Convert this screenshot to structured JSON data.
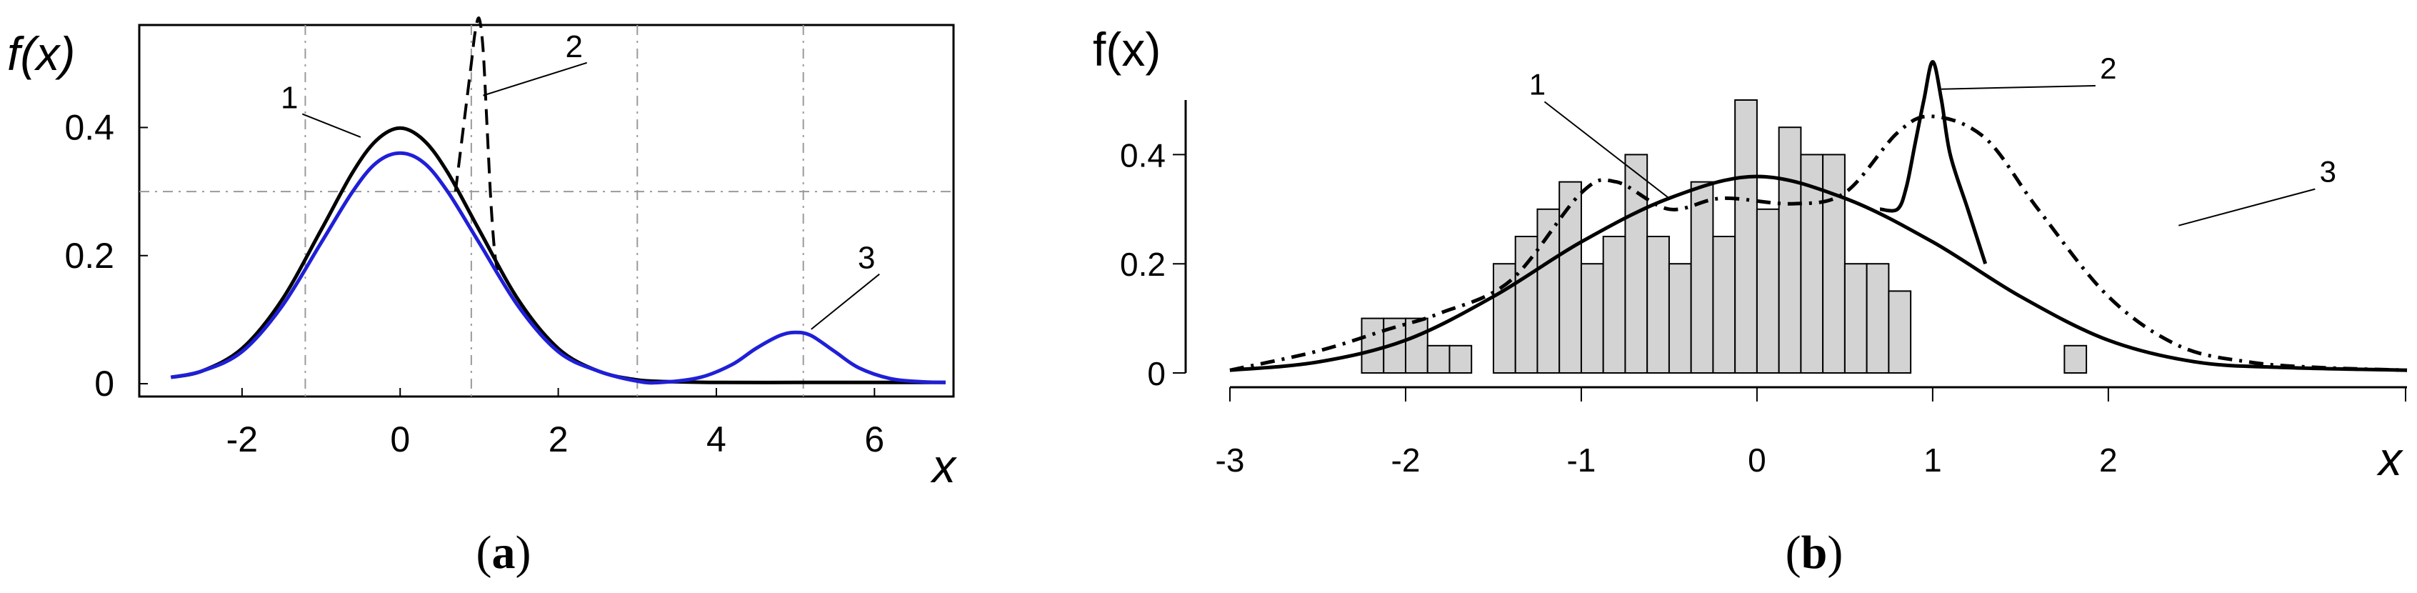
{
  "chart_data": [
    {
      "panel_label": "(a)",
      "panel_letter": "a",
      "type": "line",
      "ylabel": "f(x)",
      "xlabel": "x",
      "xlim": [
        -3.3,
        7.0
      ],
      "ylim": [
        -0.02,
        0.56
      ],
      "x_ticks": [
        -2,
        0,
        2,
        4,
        6
      ],
      "x_tick_labels": [
        "-2",
        "0",
        "2",
        "4",
        "6"
      ],
      "y_ticks": [
        0,
        0.2,
        0.4
      ],
      "y_tick_labels": [
        "0",
        "0.2",
        "0.4"
      ],
      "grid": {
        "vertical": [
          -1.2,
          0.9,
          3.0,
          5.1
        ],
        "horizontal": [
          0.3
        ]
      },
      "series": [
        {
          "name": "1",
          "color": "#000000",
          "style": "solid",
          "x": [
            -2.9,
            -2.5,
            -2.0,
            -1.5,
            -1.0,
            -0.6,
            -0.3,
            0.0,
            0.3,
            0.6,
            1.0,
            1.5,
            2.0,
            2.5,
            3.0,
            3.5,
            4.0,
            5.0,
            6.0,
            6.9
          ],
          "y": [
            0.01,
            0.02,
            0.055,
            0.13,
            0.24,
            0.33,
            0.38,
            0.399,
            0.38,
            0.33,
            0.24,
            0.13,
            0.055,
            0.02,
            0.006,
            0.003,
            0.002,
            0.002,
            0.002,
            0.002
          ]
        },
        {
          "name": "2",
          "color": "#000000",
          "style": "dashed",
          "x": [
            0.7,
            0.8,
            0.9,
            0.95,
            1.0,
            1.05,
            1.1,
            1.15,
            1.2,
            1.25
          ],
          "y": [
            0.3,
            0.4,
            0.5,
            0.55,
            0.57,
            0.52,
            0.4,
            0.28,
            0.2,
            0.17
          ]
        },
        {
          "name": "3",
          "color": "#1f1fd8",
          "style": "solid",
          "x": [
            -2.9,
            -2.5,
            -2.0,
            -1.5,
            -1.0,
            -0.6,
            -0.3,
            0.0,
            0.3,
            0.6,
            1.0,
            1.5,
            2.0,
            2.5,
            3.0,
            3.3,
            3.8,
            4.2,
            4.5,
            4.8,
            5.0,
            5.2,
            5.5,
            5.8,
            6.2,
            6.6,
            6.9
          ],
          "y": [
            0.01,
            0.02,
            0.05,
            0.12,
            0.22,
            0.3,
            0.345,
            0.36,
            0.345,
            0.3,
            0.22,
            0.12,
            0.05,
            0.02,
            0.004,
            0.002,
            0.01,
            0.03,
            0.055,
            0.075,
            0.08,
            0.075,
            0.05,
            0.025,
            0.008,
            0.003,
            0.002
          ]
        }
      ],
      "annotations": [
        {
          "text": "1",
          "x": -1.4,
          "y": 0.43,
          "target_x": -0.5,
          "target_y": 0.385
        },
        {
          "text": "2",
          "x": 2.2,
          "y": 0.51,
          "target_x": 1.05,
          "target_y": 0.45
        },
        {
          "text": "3",
          "x": 5.9,
          "y": 0.18,
          "target_x": 5.2,
          "target_y": 0.085
        }
      ]
    },
    {
      "panel_label": "(b)",
      "panel_letter": "b",
      "type": "bar",
      "ylabel": "f(x)",
      "xlabel": "x",
      "xlim": [
        -3.0,
        3.7
      ],
      "ylim": [
        0,
        0.5
      ],
      "x_ticks": [
        -3,
        -2,
        -1,
        0,
        1,
        2
      ],
      "x_tick_labels": [
        "-3",
        "-2",
        "-1",
        "0",
        "1",
        "2"
      ],
      "y_ticks": [
        0,
        0.2,
        0.4
      ],
      "y_tick_labels": [
        "0",
        "0.2",
        "0.4"
      ],
      "histogram": {
        "bin_width": 0.125,
        "bin_starts": [
          -2.25,
          -2.125,
          -2.0,
          -1.875,
          -1.75,
          -1.625,
          -1.5,
          -1.375,
          -1.25,
          -1.125,
          -1.0,
          -0.875,
          -0.75,
          -0.625,
          -0.5,
          -0.375,
          -0.25,
          -0.125,
          0.0,
          0.125,
          0.25,
          0.375,
          0.5,
          0.625,
          0.75,
          0.875,
          1.0,
          1.125,
          1.25,
          1.375,
          1.5,
          1.625,
          1.75,
          1.875
        ],
        "values": [
          0.1,
          0.1,
          0.1,
          0.05,
          0.05,
          0,
          0.2,
          0.25,
          0.3,
          0.35,
          0.2,
          0.25,
          0.4,
          0.25,
          0.2,
          0.35,
          0.25,
          0.5,
          0.3,
          0.45,
          0.4,
          0.4,
          0.2,
          0.2,
          0.15,
          0,
          0,
          0,
          0,
          0,
          0,
          0,
          0.05,
          0
        ],
        "color": "#d3d3d3"
      },
      "series": [
        {
          "name": "1",
          "color": "#000000",
          "style": "solid",
          "x": [
            -3.0,
            -2.5,
            -2.0,
            -1.5,
            -1.0,
            -0.5,
            0.0,
            0.5,
            1.0,
            1.5,
            2.0,
            2.5,
            3.0,
            3.7
          ],
          "y": [
            0.005,
            0.02,
            0.06,
            0.14,
            0.24,
            0.32,
            0.36,
            0.32,
            0.24,
            0.14,
            0.06,
            0.02,
            0.01,
            0.005
          ]
        },
        {
          "name": "2",
          "color": "#000000",
          "style": "solid",
          "x": [
            0.7,
            0.8,
            0.85,
            0.9,
            0.95,
            1.0,
            1.05,
            1.1,
            1.2,
            1.3
          ],
          "y": [
            0.3,
            0.3,
            0.34,
            0.42,
            0.5,
            0.57,
            0.5,
            0.4,
            0.3,
            0.2
          ]
        },
        {
          "name": "3",
          "color": "#000000",
          "style": "dashdot",
          "x": [
            -3.0,
            -2.5,
            -2.1,
            -1.8,
            -1.4,
            -1.0,
            -0.8,
            -0.5,
            -0.2,
            0.2,
            0.5,
            0.8,
            1.0,
            1.3,
            1.6,
            2.0,
            2.4,
            2.8,
            3.2,
            3.7
          ],
          "y": [
            0.005,
            0.04,
            0.08,
            0.11,
            0.17,
            0.33,
            0.35,
            0.3,
            0.32,
            0.31,
            0.33,
            0.44,
            0.47,
            0.43,
            0.3,
            0.14,
            0.05,
            0.02,
            0.01,
            0.005
          ]
        }
      ],
      "annotations": [
        {
          "text": "1",
          "x": -1.25,
          "y": 0.51,
          "target_x": -0.5,
          "target_y": 0.32
        },
        {
          "text": "2",
          "x": 2.0,
          "y": 0.56,
          "target_x": 1.05,
          "target_y": 0.52
        },
        {
          "text": "3",
          "x": 3.25,
          "y": 0.35,
          "target_x": 2.4,
          "target_y": 0.27
        }
      ]
    }
  ]
}
